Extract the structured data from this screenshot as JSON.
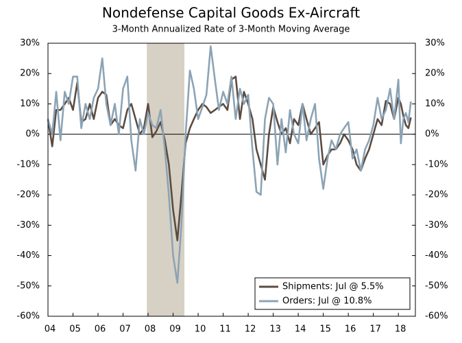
{
  "chart_data": {
    "type": "line",
    "title": "Nondefense Capital Goods Ex-Aircraft",
    "subtitle": "3-Month Annualized Rate of 3-Month Moving Average",
    "x": [
      2004,
      2004.17,
      2004.33,
      2004.5,
      2004.67,
      2004.83,
      2005,
      2005.17,
      2005.33,
      2005.5,
      2005.67,
      2005.83,
      2006,
      2006.17,
      2006.33,
      2006.5,
      2006.67,
      2006.83,
      2007,
      2007.17,
      2007.33,
      2007.5,
      2007.67,
      2007.83,
      2008,
      2008.17,
      2008.33,
      2008.5,
      2008.67,
      2008.83,
      2009,
      2009.17,
      2009.33,
      2009.5,
      2009.67,
      2009.83,
      2010,
      2010.17,
      2010.33,
      2010.5,
      2010.67,
      2010.83,
      2011,
      2011.17,
      2011.33,
      2011.5,
      2011.67,
      2011.83,
      2012,
      2012.17,
      2012.33,
      2012.5,
      2012.67,
      2012.83,
      2013,
      2013.17,
      2013.33,
      2013.5,
      2013.67,
      2013.83,
      2014,
      2014.17,
      2014.33,
      2014.5,
      2014.67,
      2014.83,
      2015,
      2015.17,
      2015.33,
      2015.5,
      2015.67,
      2015.83,
      2016,
      2016.17,
      2016.33,
      2016.5,
      2016.67,
      2016.83,
      2017,
      2017.17,
      2017.33,
      2017.5,
      2017.67,
      2017.83,
      2018,
      2018.1,
      2018.2,
      2018.3,
      2018.4,
      2018.5
    ],
    "series": [
      {
        "name": "Shipments: Jul @ 5.5%",
        "color": "#5b4b40",
        "values": [
          5,
          -4,
          8,
          8,
          10,
          12,
          8,
          17,
          4,
          5,
          10,
          5,
          12,
          14,
          13,
          3,
          5,
          3,
          2,
          8,
          10,
          5,
          0,
          2,
          10,
          -1,
          1,
          4,
          -2,
          -10,
          -25,
          -35,
          -20,
          -3,
          2,
          5,
          8,
          10,
          9,
          7,
          8,
          9,
          10,
          8,
          18,
          19,
          5,
          14,
          10,
          5,
          -5,
          -10,
          -15,
          0,
          9,
          4,
          0,
          2,
          -3,
          5,
          3,
          10,
          5,
          0,
          2,
          4,
          -10,
          -7,
          -5,
          -5,
          -3,
          0,
          -2,
          -5,
          -10,
          -12,
          -8,
          -5,
          0,
          5,
          3,
          11,
          10,
          5,
          12,
          10,
          6,
          3,
          2,
          5.5
        ]
      },
      {
        "name": "Orders: Jul @ 10.8%",
        "color": "#8ba3b5",
        "values": [
          5,
          0,
          14,
          -2,
          14,
          10,
          19,
          19,
          2,
          10,
          5,
          12,
          15,
          25,
          10,
          3,
          10,
          0,
          15,
          19,
          -2,
          -12,
          5,
          0,
          7,
          3,
          2,
          8,
          -5,
          -20,
          -40,
          -49,
          -30,
          0,
          21,
          15,
          5,
          9,
          13,
          29,
          18,
          8,
          14,
          10,
          19,
          5,
          15,
          10,
          13,
          -5,
          -19,
          -20,
          5,
          12,
          10,
          -10,
          5,
          -6,
          8,
          0,
          -3,
          10,
          -2,
          5,
          10,
          -8,
          -18,
          -8,
          -2,
          -5,
          0,
          2,
          4,
          -8,
          -5,
          -12,
          -5,
          -2,
          3,
          12,
          5,
          8,
          15,
          5,
          18,
          -3,
          5,
          7,
          4,
          10.8
        ]
      }
    ],
    "shaded_regions": [
      [
        2007.95,
        2009.45
      ]
    ],
    "shade_color": "#d6d1c4",
    "xlim": [
      2004,
      2018.68
    ],
    "xticks": [
      {
        "value": 2004,
        "label": "04"
      },
      {
        "value": 2005,
        "label": "05"
      },
      {
        "value": 2006,
        "label": "06"
      },
      {
        "value": 2007,
        "label": "07"
      },
      {
        "value": 2008,
        "label": "08"
      },
      {
        "value": 2009,
        "label": "09"
      },
      {
        "value": 2010,
        "label": "10"
      },
      {
        "value": 2011,
        "label": "11"
      },
      {
        "value": 2012,
        "label": "12"
      },
      {
        "value": 2013,
        "label": "13"
      },
      {
        "value": 2014,
        "label": "14"
      },
      {
        "value": 2015,
        "label": "15"
      },
      {
        "value": 2016,
        "label": "16"
      },
      {
        "value": 2017,
        "label": "17"
      },
      {
        "value": 2018,
        "label": "18"
      }
    ],
    "ylim": [
      -60,
      30
    ],
    "yticks": [
      {
        "value": 30,
        "label": "30%"
      },
      {
        "value": 20,
        "label": "20%"
      },
      {
        "value": 10,
        "label": "10%"
      },
      {
        "value": 0,
        "label": "0%"
      },
      {
        "value": -10,
        "label": "-10%"
      },
      {
        "value": -20,
        "label": "-20%"
      },
      {
        "value": -30,
        "label": "-30%"
      },
      {
        "value": -40,
        "label": "-40%"
      },
      {
        "value": -50,
        "label": "-50%"
      },
      {
        "value": -60,
        "label": "-60%"
      }
    ],
    "legend": "lower right"
  }
}
